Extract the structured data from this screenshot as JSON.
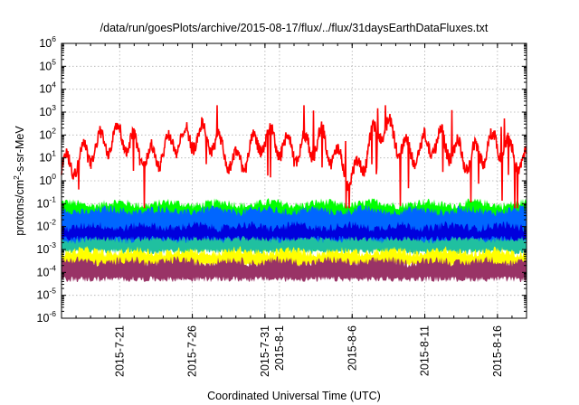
{
  "colors": {
    "background": "#ffffff",
    "axis": "#000000",
    "grid": "#b0b0b0"
  },
  "chart_data": {
    "type": "area",
    "title": "/data/run/goesPlots/archive/2015-08-17/flux/../flux/31daysEarthDataFluxes.txt",
    "xlabel": "Coordinated Universal Time (UTC)",
    "ylabel": "protons/cm2-s-sr-MeV",
    "ylabel_parts": {
      "base": "protons/cm",
      "sup": "2",
      "rest": "-s-sr-MeV"
    },
    "yscale": "log",
    "ylim": [
      1e-06,
      1000000.0
    ],
    "xlim": [
      "2015-07-17",
      "2015-08-18"
    ],
    "grid": true,
    "x_tick_labels": [
      "2015-7-21",
      "2015-7-26",
      "2015-7-31",
      "2015-8-1",
      "2015-8-6",
      "2015-8-11",
      "2015-8-16"
    ],
    "x_tick_dates": [
      "2015-07-21",
      "2015-07-26",
      "2015-07-31",
      "2015-08-01",
      "2015-08-06",
      "2015-08-11",
      "2015-08-16"
    ],
    "y_tick_labels": [
      {
        "base": "10",
        "exp": "-6"
      },
      {
        "base": "10",
        "exp": "-5"
      },
      {
        "base": "10",
        "exp": "-4"
      },
      {
        "base": "10",
        "exp": "-3"
      },
      {
        "base": "10",
        "exp": "-2"
      },
      {
        "base": "10",
        "exp": "-1"
      },
      {
        "base": "10",
        "exp": "0"
      },
      {
        "base": "10",
        "exp": "1"
      },
      {
        "base": "10",
        "exp": "2"
      },
      {
        "base": "10",
        "exp": "3"
      },
      {
        "base": "10",
        "exp": "4"
      },
      {
        "base": "10",
        "exp": "5"
      },
      {
        "base": "10",
        "exp": "6"
      }
    ],
    "series": [
      {
        "color": "#ff0000",
        "style": "line",
        "x": [
          "2015-07-17",
          "2015-07-19",
          "2015-07-21",
          "2015-07-23",
          "2015-07-25",
          "2015-07-27",
          "2015-07-29",
          "2015-07-31",
          "2015-08-02",
          "2015-08-04",
          "2015-08-06",
          "2015-08-08",
          "2015-08-10",
          "2015-08-12",
          "2015-08-14",
          "2015-08-16",
          "2015-08-18"
        ],
        "y": [
          3,
          20,
          120,
          8,
          60,
          100,
          5,
          80,
          20,
          60,
          1,
          300,
          15,
          60,
          8,
          50,
          5
        ]
      },
      {
        "color": "#00ff00",
        "style": "band",
        "low": 0.001,
        "high": 0.1
      },
      {
        "color": "#0066ff",
        "style": "band",
        "low": 0.0015,
        "high": 0.05
      },
      {
        "color": "#20c0a0",
        "style": "band",
        "low": 0.0008,
        "high": 0.003
      },
      {
        "color": "#0000dd",
        "style": "band",
        "low": 0.003,
        "high": 0.01
      },
      {
        "color": "#ffff00",
        "style": "band",
        "low": 0.0002,
        "high": 0.0008
      },
      {
        "color": "#993366",
        "style": "band",
        "low": 5e-05,
        "high": 0.0003
      }
    ]
  }
}
